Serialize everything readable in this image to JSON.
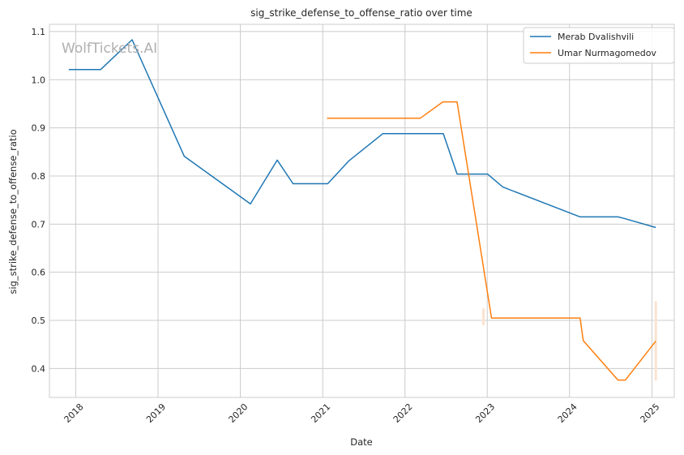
{
  "chart_data": {
    "type": "line",
    "title": "sig_strike_defense_to_offense_ratio over time",
    "xlabel": "Date",
    "ylabel": "sig_strike_defense_to_offense_ratio",
    "watermark": "WolfTickets.AI",
    "xlim": [
      "2017-09-06",
      "2025-04-10"
    ],
    "ylim": [
      0.34,
      1.115
    ],
    "x_ticks": [
      "2018-01-01",
      "2019-01-01",
      "2020-01-01",
      "2021-01-01",
      "2022-01-01",
      "2023-01-01",
      "2024-01-01",
      "2025-01-01"
    ],
    "x_tick_labels": [
      "2018",
      "2019",
      "2020",
      "2021",
      "2022",
      "2023",
      "2024",
      "2025"
    ],
    "y_ticks": [
      0.4,
      0.5,
      0.6,
      0.7,
      0.8,
      0.9,
      1.0,
      1.1
    ],
    "y_tick_labels": [
      "0.4",
      "0.5",
      "0.6",
      "0.7",
      "0.8",
      "0.9",
      "1.0",
      "1.1"
    ],
    "grid": true,
    "legend_position": "top-right",
    "colors": {
      "grid": "#cccccc",
      "spine": "#cccccc",
      "band": "#fbe3d0"
    },
    "series": [
      {
        "name": "Merab Dvalishvili",
        "color": "#1f77b4",
        "points": [
          {
            "x": "2017-12-01",
            "y": 1.021
          },
          {
            "x": "2018-04-21",
            "y": 1.021
          },
          {
            "x": "2018-09-08",
            "y": 1.083
          },
          {
            "x": "2019-04-27",
            "y": 0.841
          },
          {
            "x": "2020-02-15",
            "y": 0.742
          },
          {
            "x": "2020-06-13",
            "y": 0.833
          },
          {
            "x": "2020-08-22",
            "y": 0.784
          },
          {
            "x": "2021-01-23",
            "y": 0.784
          },
          {
            "x": "2021-04-26",
            "y": 0.831
          },
          {
            "x": "2021-09-25",
            "y": 0.888
          },
          {
            "x": "2022-06-20",
            "y": 0.888
          },
          {
            "x": "2022-08-20",
            "y": 0.804
          },
          {
            "x": "2023-01-02",
            "y": 0.804
          },
          {
            "x": "2023-03-11",
            "y": 0.777
          },
          {
            "x": "2024-02-17",
            "y": 0.715
          },
          {
            "x": "2024-08-03",
            "y": 0.715
          },
          {
            "x": "2024-08-29",
            "y": 0.712
          },
          {
            "x": "2025-01-18",
            "y": 0.693
          }
        ]
      },
      {
        "name": "Umar Nurmagomedov",
        "color": "#ff7f0e",
        "points": [
          {
            "x": "2021-01-20",
            "y": 0.92
          },
          {
            "x": "2022-03-10",
            "y": 0.92
          },
          {
            "x": "2022-06-18",
            "y": 0.954
          },
          {
            "x": "2022-08-20",
            "y": 0.954
          },
          {
            "x": "2023-01-20",
            "y": 0.505
          },
          {
            "x": "2024-02-17",
            "y": 0.505
          },
          {
            "x": "2024-03-02",
            "y": 0.458
          },
          {
            "x": "2024-08-03",
            "y": 0.376
          },
          {
            "x": "2024-09-05",
            "y": 0.376
          },
          {
            "x": "2025-01-18",
            "y": 0.457
          }
        ]
      }
    ],
    "uncertainty_bands": [
      {
        "series": "Umar Nurmagomedov",
        "x": "2022-12-15",
        "y_low": 0.49,
        "y_high": 0.525
      },
      {
        "series": "Umar Nurmagomedov",
        "x": "2025-01-18",
        "y_low": 0.375,
        "y_high": 0.54
      }
    ]
  }
}
